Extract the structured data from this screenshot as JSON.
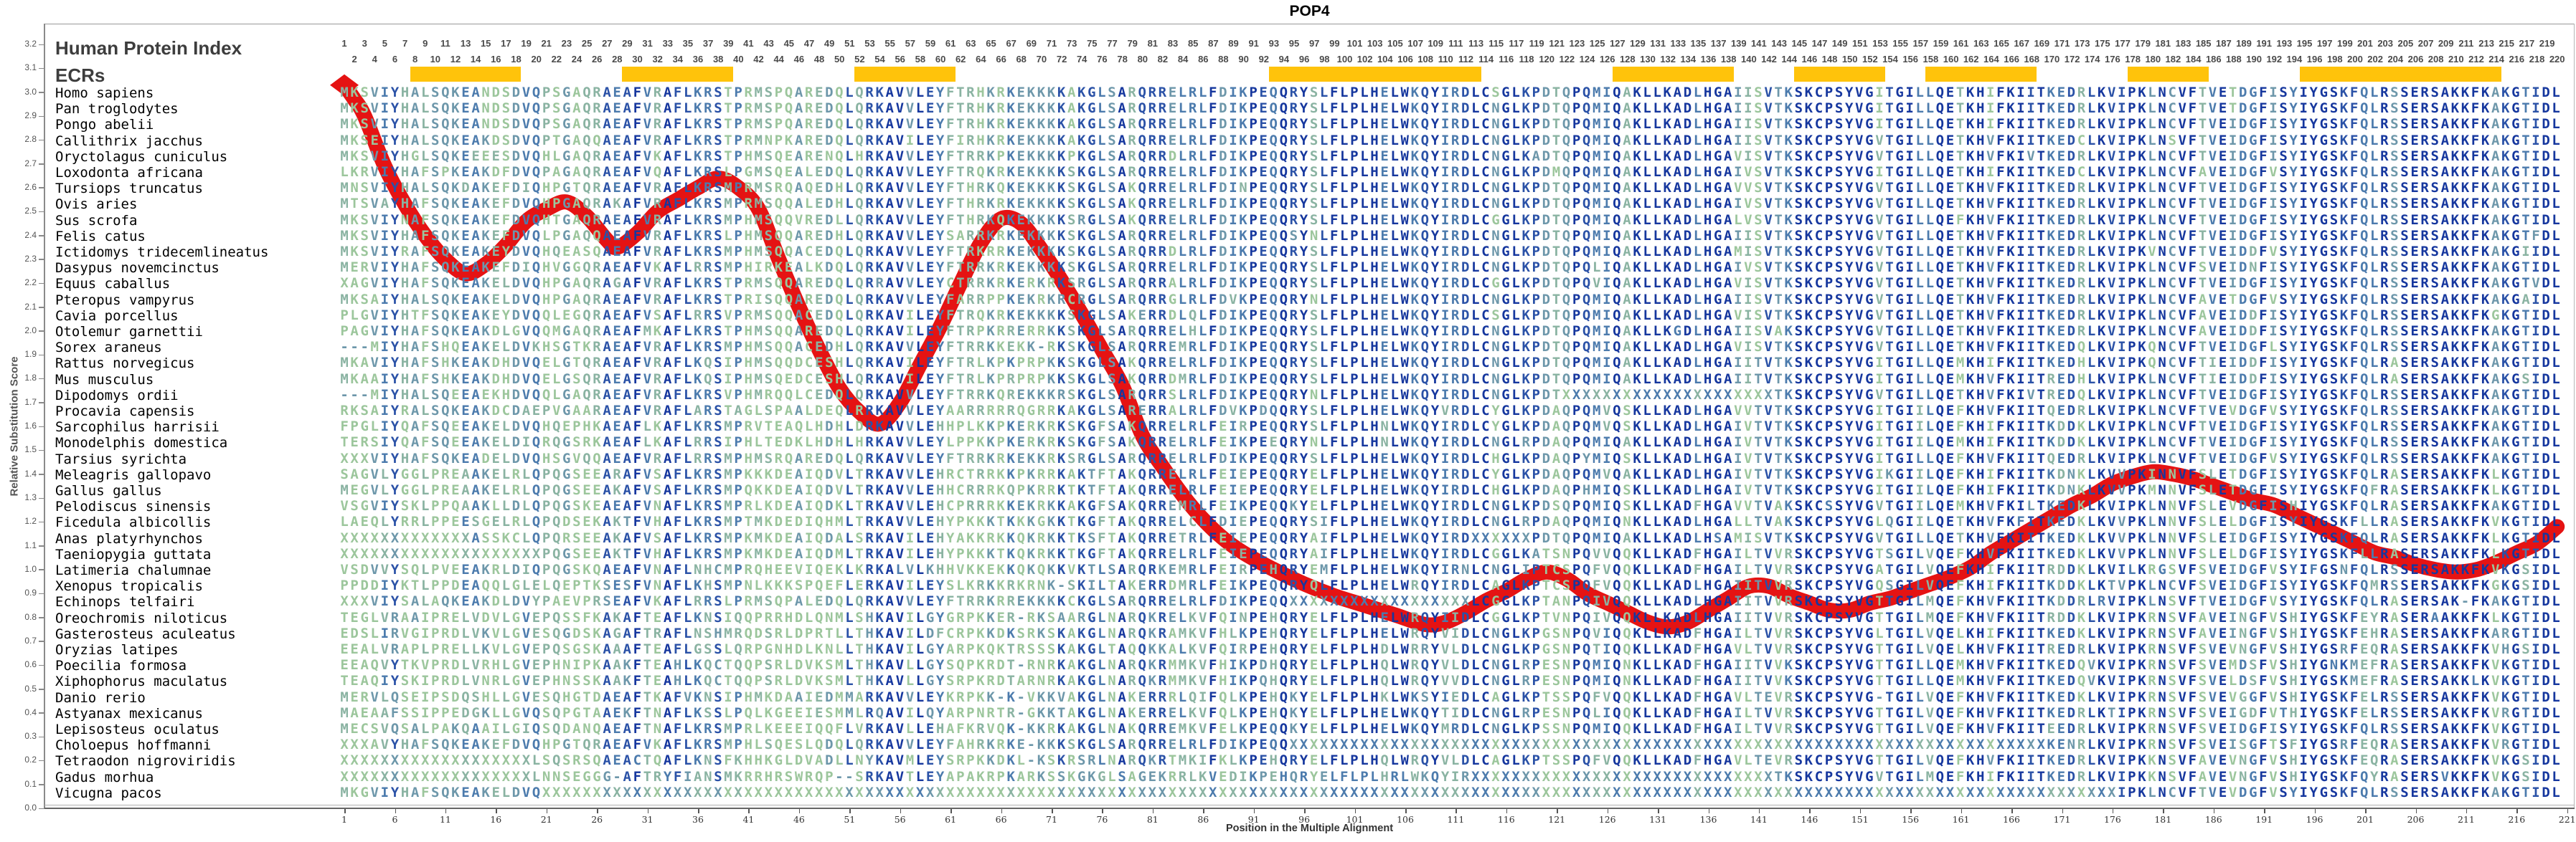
{
  "title": "POP4",
  "y_axis": {
    "label": "Relative Substitution Score",
    "min": 0.0,
    "max": 3.2,
    "step": 0.1
  },
  "x_axis": {
    "label": "Position in the Multiple Alignment",
    "tick_start": 1,
    "tick_step": 5,
    "tick_end": 221
  },
  "left_panel": {
    "header": "Human Protein Index",
    "ecr_label": "ECRs"
  },
  "ruler": {
    "start": 1,
    "end": 220
  },
  "ecr_regions": [
    [
      8,
      18
    ],
    [
      29,
      39
    ],
    [
      52,
      61
    ],
    [
      93,
      113
    ],
    [
      127,
      138
    ],
    [
      145,
      153
    ],
    [
      158,
      168
    ],
    [
      178,
      185
    ],
    [
      195,
      214
    ]
  ],
  "colors": {
    "ecr_bar": "#FFC30B",
    "curve": "#E51313",
    "conservation_palette": [
      "#16379e",
      "#2b52a7",
      "#4c7bad",
      "#6d97aa",
      "#8ab3a2",
      "#9cc69c"
    ],
    "axis": "#888888",
    "ruler_text": "#4a4a4a"
  },
  "species": [
    "Homo sapiens",
    "Pan troglodytes",
    "Pongo abelii",
    "Callithrix jacchus",
    "Oryctolagus cuniculus",
    "Loxodonta africana",
    "Tursiops truncatus",
    "Ovis aries",
    "Sus scrofa",
    "Felis catus",
    "Ictidomys tridecemlineatus",
    "Dasypus novemcinctus",
    "Equus caballus",
    "Pteropus vampyrus",
    "Cavia porcellus",
    "Otolemur garnettii",
    "Sorex araneus",
    "Rattus norvegicus",
    "Mus musculus",
    "Dipodomys ordii",
    "Procavia capensis",
    "Sarcophilus harrisii",
    "Monodelphis domestica",
    "Tarsius syrichta",
    "Meleagris gallopavo",
    "Gallus gallus",
    "Pelodiscus sinensis",
    "Ficedula albicollis",
    "Anas platyrhynchos",
    "Taeniopygia guttata",
    "Latimeria chalumnae",
    "Xenopus tropicalis",
    "Echinops telfairi",
    "Oreochromis niloticus",
    "Gasterosteus aculeatus",
    "Oryzias latipes",
    "Poecilia formosa",
    "Xiphophorus maculatus",
    "Danio rerio",
    "Astyanax mexicanus",
    "Lepisosteus oculatus",
    "Choloepus hoffmanni",
    "Tetraodon nigroviridis",
    "Gadus morhua",
    "Vicugna pacos"
  ],
  "sequences": [
    "MKSVIYHALSQKEANDSDVQPSGAQRAEAFVRAFLKRSTPRMSPQAREDQLQRKAVVLEYFTRHKRKEKKKKAKGLSARQRRELRLFDIKPEQQRYSLFLPLHELWKQYIRDLCSGLKPDTQPQMIQAKLLKADLHGAIISVTKSKCPSYVGITGILLQETKHIFKIITKEDRLKVIPKLNCVFTVETDGFISYIYGSKFQLRSSERSAKKFKAKGTIDL",
    "MKSVIYHALSQKEANDSDVQPSGAQRAEAFVRAFLKRSTPRMSPQAREDQLQRKAVVLEYFTRHKRKEKKKKAKGLSARQRRELRLFDIKPEQQRYSLFLPLHELWKQYIRDLCNGLKPDTQPQMIQAKLLKADLHGAIISVTKSKCPSYVGITGILLQETKHIFKIITKEDRLKVIPKLNCVFTVETDGFISYIYGSKFQLRSSERSAKKFKAKGTIDL",
    "MKSVIYHALSQKEANDSDVQPSGAQRAEAFVRAFLKRSTPRMSPQAREDQLQRKAVVLEYFTRHKRKEKKKKAKGLSARQRRELRLFDIKPEQQRYSLFLPLHELWKQYIRDLCNGLKPDTQPQMIQAKLLKADLHGAIISVTKSKCPSYVGITGILLQETKHIFKIITKEDRLKVIPKLNCVFTVEIDGFISYIYGSKFQLRSSERSAKKFKAKGTIDL",
    "MKSEIYHALSQKEAKDSDVQPTGAQQAEAFVRAFLKRSTPRMNPKAREDQLQRKAVILEYFIRHKRKEKKKKAKGLSARQRRELRLFDIKPEQQRYSLFLPLHELWKQYIRDLCNGLKPDTQPQMIQAKLLKADLHGAIISVTKSKCPSYVGVTGILLQETKHVFKIITKEDCLKVIPKLNSVFTVEIDGFISYIYGSKFQLRSSERSAKKFKAKGTIDL",
    "MKSVIYHGLSQKEEEESDVQHLGAQRAEAFVKAFLKRSTPHMSQEARENQLHRKAVVLEYFTRRKPKEKKKKPKGLSARQRRDLRLFDIKPEQQRYSLFLPLHELWKQYIRDLCNGLKADTQPQMIQAKLLKADLHGAVISVTKSKCPSYVGVTGILLQETKHVFKIVTKEDRLKVIPKLNCVFTVEIDGFISYIYGSKFQLRSSERSAKKFKAKGTIDL",
    "LKRVIYHAFSPKEAKDFDVQPAGAQRAEAFVQAFLKRSLPGMSQEALEDQLQRKAVVLEYFTRQKRKEKKKKSKGLSARQRRELRLFDIKPEQQRYSLFLPLHELWKQYIRDLCNGLKPDMQPQMIQAKLLKADLHGAIVSVTKSKCPSYVGITGILLQETKHIFKIITKEDCLKVIPKLNCVFAVEIDGFVSYIYGSKFQLRSSERSAKKFKAKGTIDL",
    "MNSVIYHALSQKDAKEFDIQHPGTQRAEAFVRAFLKRSMPRMSRQAQEDHLQRKAVVLEYFTHRKQKEKKKKSKGLSAKQRRELRLFDINPEQQRYSLFLPLHELWKQYIRDLCNGLKPDTQPQMIQAKLLKADLHGAVVSVTKSKCPSYVGVTGILLQETKHVFKIITKEDRLKVIPKLNCVFTVEIDGFISYIYGSKFQLRSSERSAKKFKAKGTIDL",
    "MTSVAYHAFSQKEAKEFDVQHPGAQRAKAFVRAFLKRSMPRMSQQALEDHLQRKAVVLEYFTHRKRKEKKKKSKGLSAKQRRELRLFDIKPEQQRYSLFLPLHELWKQYIRDLCNGLKPDTQPQMIQAKLLKADLHGAIVSVTKSKCPSYVGVTGILLQETKHVFKIITKEDRLKVIPKLNCVFTVEIDGFISYIYGSKFQLRSSERSAKKFKAKGTIDL",
    "MKSVIYNAFSQKEAKEFDVQHTGAQRAEAFVRAFLKRSMPHMSQQVREDLLQRKAVVLEYFTHRKQKEKKKKSRGLSAKQRRELRLFDIKPEQQRYSLFLPLHELWKQYIRDLCGGLKPDTQPQMIQAKLLKADLHGALVSVTKSKCPSYVGVTGILLQEFKHVFKIITKEDRLKVIPKLNCVFTVEIDGFISYIYGSKFQLRSSERSAKKFKAKGTIDL",
    "MKSVIYHAFSQKEAKEFDVQLPGAQQAEAFVRAFLKRSLPHMSQQAREDHLQRKAVVLEYSARRKRKEKKKKSKGLSARQRRELRLFDIKPEQQSYNLFLPLHELWKQYIRDLCNGLKPDTQPQMIQAKLLKADLHGAIISVTKSKCPSYVGVTGILLQETKHVFKIITKEDRLKVIPKLNCVFTVEIDGFISYIYGSKFQLRSSERSAKKFKAKGTFDL",
    "MKSVIYRAFSQKEAKEYDVQHQEASQAEAFVRAFLKRSMPHMSQQACEDQLQRKAVVLEYFTRKRRKEKKKKSKGLSARQRRDLRLFDIKPEQQRYSLFLPLHELWKQYIRDLCNGLKPDTQPQMIQAKLLKADLHGAMISVTKSKCPSYVGVTGILLQETKHVFKIITKEDRLKVIPKVNCVFTVEIDDFVSYIYGSKFQLRSSERSAKKFKAKGIIDL",
    "MERVIYHAFSQKEAKEFDIQHVGGQRAEAFVKAFLRRSMPHIRKEALKDQLQRKAVVLEYFTRRKRKEKKKKSKGLSARQRRELRLFDIKPEQQRYSLFLPLHELWKQYIRDLCNGLKPDTQPQLIQAKLLKADLHGAIVSVTKSKCPSYVGVTGILLQETKHVFKIITKEDRLKVIPKLNCVFSVEIDNFISYIYGSKFQLRSSERSAKKFKAKGTIDL",
    "XAGVIYHAFSQKEAKELDVQHPGAQRAGAFVRAFLKRSTPRMSQQAREDQLQRRAVVLEYCTRRKRKERKRKSRGLSARQRRALRLFDIKPEQQRYSLFLPLHELWKQYIRDLCGGLKPDTQPQVIQAKLLKADLHGAVISVTKSKCPSYVGVTGILLQETKHVFKIITKEDRLKVIPKLNCVFTVEIDGFISYIYGSKFQLRSSERSAKKFKAKGTVDL",
    "MKSAIYHALSQKEAKELDVQHPGAQRAEAFVRAFLKRSTPRISQQAREDQLQRKAVVLEYFARRPPKEKRKRCRGLSARQRRGLRLFDVKPEQQRYNLFLPLHELWKQYIRDLCNGLKPDTQPQMIQAKLLKADLHGAIISVTKSKCPSYVGVTGILLQETKHVFKIITKEDRLKVIPKLNCVFAVETDGFVSYIYGSKFQLRSSERSAKKFKAKGAIDL",
    "PLGVIYHTFSQKEAKEYDVQQLEGQRAEAFVSAFLRRSVPRMSQQACEDQLQRKAVILEYFTRQKRKEKKKKSKGLSAKERRDLQLFDIKPEQQRYSLFLPLHELWKQYIRDLCSGLKPDTQPQMIQAKLLKADLHGAVISVTKSKCPSYVGVTGILLQETKHVFKIITKEDRLKVIPKLNCVFAVEIDDFISYIYGSKFQLRSSERSAKKFKGKGTIDL",
    "PAGVIYHAFSQKEAKDLGVQQMGAQRAEAFMKAFLKRSTPHMSQQAREDQLQRKAVILEYFTRPKRRERRKKSKGLSARQRRELHLFDIKPEQQRYSLFLPLHELWKQYIRDLCNGLKPDTQPQMIQAKLLKGDLHGAIISVAKSKCPSYVGVTGILLQETKHVFKIITKEDRLKVIPKLNCVFAVEIDDFISYIYGSKFQLRSSERSAKKFKAKGTIDL",
    "---MIYHAFSHQEAKELDVKHSGTKRAEAFVRAFLKRSMPHMSQQACEDHLQRKAVVLEYFTRRKKEKK-RKSKGLSARQRREMRLFDIKPEQQRYSLFLPLHELWKQYIRDLCNGLKPDTQPQMIQAKLLKADLHGAVISVTKSKCPSYVGVTGILLQETKHVFKIITKEDQLKVIPKQNCVFTVEIDGFLSYIYGSKFQLRSSERSAKKFKAKGTIDL",
    "MKAVIYHAFSHKEAKDHDVQELGTQRAEAFVRAFLKQSIPHMSQQDCESHLQRKAVILEYFTRLKPKPRPKKSKGLSAKQRRELRLFDIKPEQQRYSLFLPLHELWKQYIRDLCNGLKPDTQPQMIQAKLLKADLHGAIITVTKSKCPSYVGITGILLQEMKHIFKIITKEDHLKVIPKQNCVFTIEIDDFISYIYGSKFQLRASERSAKKFKAKGTIDL",
    "MKAAIYHAFSHKEAKDHDVQELGSQRAEAFVRAFLKQSIPHMSQEDCESHLQRKAVILEYFTRLKPRPRPKKSKGLSAKQRRDMRLFDIKPEQQRYSLFLPLHELWKQYIRDLCNGLKPDTQPQMIQAKLLKADLHGAIITVTKSKCPSYVGITGILLQEMKHVFKIITREDHLKVIPKLNCVFTIEIDDFISYIYGSKFQLRASERSAKKFKAKGSIDL",
    "---MIYHALSQEEAEKHDVQQLGAQRAEAFVRAFLKRSVPHMRQQLCEDQLQRKAVVLEYFTRRKQREKKKRSKGLSARQRRSLRLFDIKPEQQRYNLFLPLHELWKQYIRDLCNGLKPDTXXXXXXXXXXXXXXXXXXXXXTKSKCPSYVGVTGILLQETKHVFKIVTREDQLKVIPKLNCVFTVEIDGFISYIYGSKFQLRSSERSAKKFKAKGTIDL",
    "RKSAIYRALSQKEAKDCDAEPVGAARAEAFVRAFLARSTAGLSPAALDEQLRRKAVVLEYAARRRRRQGRRKAKGLSARERRALRLFDVKPDQQRYSLFLPLHELWKQYVRDLCYGLKPDAQPQMVQSKLLKADLHGAVVTVTKSKCPSYVGITGIILQEFKHVFKIITQEDRLKVIPKLNCVFTVEVDGFVSYIYGSKFQLRSSERSAKKFKAKGTIDL",
    "FPGLIYQAFSQEEAKELDVQHQEPHKAEAFLKAFLKRSMPRVTEAQLHDHLDRKAVVLEHHPLKKPKERKRKSKGFSAKQRRELRLFEIRPEQQRYSLFLPLHNLWKQYIRDLCYGLKPDAQPQMVQSKLLKADLHGAIVTVTKSKCPSYVGITGIILQEFKHIFKIITKDDKLKVIPKLNCVFTVEIDGFISYIYGSKFQLRSSERSAKKFKAKGTIDL",
    "TERSIYQAFSQEEAKELDIQRQGSRKAEAFLKAFLRRSIPHLTEDKLHDHLHRKAVVLEYLPPKKPKERKRKSKGFSAKQRRELRLFEIKPEEQRYNLFLPLHNLWKQYIRDLCNGLRPDAQPQMIQAKLLKADLHGAIVTVTKSKCPSYVGITGIILQEMKHIFKIITKDDKLKVIPKLNCVFTVEIDGFISYIYGSKFQLRSSERSAKKFKAKGTIDL",
    "XXXVIYHAFSQKEADELDVQHSGVQQAEAFVRAFLRRSMPHMSRQAREDQLQRKAVVLEYFTRRKRKEKKRKSRGLSARQRRELRLFDIKPEQQRYSLFLPLHELWKQYIRDLCHGLKPDAQPYMIQSKLLKADLHGAIVTVTKSKCPSYVGITGILLQEFKHVFKIITQEDRLKVIPKLNCVFTVEIDGFVSYIYGSKFQLRSSERSAKKFKAKGTIDL",
    "SAGVLYGGLPREAAKELRLQPQGSEEARAFVSAFLKRSMPKKKDEAIQDVLTRKAVVLEHRCTRRKKPKRRKAKTFTAKQRRELRLFEIEPEQQRYELFLPLHELWKQYIRDLCYGLKPDAQPQMVQAKLLKADLHGAIVTVTKSKCPSYVGIKGIILQEFKHIFKIITKDNKLKVVPKINNVFSLETDGFISYIYGSKFQLRASERSAKKFKLKGTIDL",
    "MEGVLYGGLPREAAKELRLQPQGSEEAKAFVSAFLKRSMPQKKDEAIQDVLTRKAVVLEHHCRRRKQPKRRKTKTFTAKQRRELRLFEIEPEQQRYELFLPLHELWKQYIRDLCHGLKPDAQPHMIQSKLLKADLHGAIVTVTKSKCPSYVGITGIILQEFKHIFKIITKDNKLKVVPKMNNVFSLETDGFISYIYGSKFQFRASERSAKKFKLKGTIDL",
    "VSGVIYSKLPPQAAKLLDLQPQGSKEAEAFVNAFLKRSMPRLKDEAIQDKLTRKAVVLEHCPRRRKKEKRKKAKGFSAKQRREMRLFEIKPEQQKYELFLPLHELWKQYIRDLCNGLKPDSQPQMIQSKLLKADFHGAVVTVAKSKCSSYVGVTGIILQEMKHVFKILTKEDKLKVIPKLNNVFSLEVDGFISHIYGSKFQLRASERSAKKFKAKGTIDL",
    "LAEQLYRRLPPEESGELRLQPQDSEKAKTFVHAFLKRSMPTMKDEDIQHMLTRKAVVLEHYPKKKTKKKGKKTKGFTAKQRRELCLFDIEPEQQRYSIFLPLHELWKQYIRDLCNGLRPDAQPQMIQNKLLKADLHGALLTVAKSKCPSYVGLQGIILQETKHVFKFITKEDKLKVVPKLNNVFSLELDGFISYIYGSKFLLRASERSAKKFKVKGTIDL",
    "XXXXXXXXXXXXXASSKCLQPQRSEEAKAFVSAFLKRSMPKMKDEAIQDALSRKAVILEHYAKKRKKQKRKKTKSFTAKQRRETRLFEIEPEQQRYAIFLPLHELWKQYIRDXXXXXXPDTQPQMIQAKLLKADLHSAMISVTKSKCPSYVGVTGILLQETKHVFKIITKEDKLKVVPKLNNVFSLEIDGFISYIYGSKFQLRASERSAKKFKLKGTIDL",
    "XXXXXXXXXXXXXXXXXXXXPQGSEEAKTFVHAFLKRSMPKMKDEAIQDMLTRKAVILEHYPKKKTKQKRKKTKGFTAKQRRELRLFEIEPEQQRYAIFLPLHELWKQYIRDLCGGLKATSNPQVVQQKLLKADFHGAILTVVRSKCPSYVGTSGILVQEFKHVFKIITKEDKLKVVPKLNNVFSLELDGFISYIYGSKFLLRASERSAKKFKLKGTIDL",
    "VSDVVYSQLPVEEAKRLDIQPQGSKQAEAFVNAFLNHCMPRQHEEVIQEKLKRKALVLKHHVKKEKKQKQKKVKTLSARQRKEMRLFEIRPEHQRYEMFLPLHELWKQYIRNLCNGLIPTCSPQFVQQKLLKADFHGAILTVVRSKCPSYVGATGILVQEFKHIFKIITRDDKLKVILKRGSVFSVEIDGFVSYIFGSNFQLRSSERSAKKFKVKGSIDL",
    "PPDDIYKTLPPDEAQQLGLELQEPTKSESFVNAFLKHSMPNLKKKSPQEFLERKAVILEYSLKRKKRKRNK-SKILTAKERRDMRLFEIKPEQQRYQLFLPLHELWRQYIRDLCAGLKPTCSPQFVQQKLLKADLHGAIITVVRSKCPSYVGQSGILVQEFKHIFKIITKDDKLKTVPKLNCVFSVEIDGFISYIYGSKFQMRSSERSAKKFKGKGSIDL",
    "XXXVIYSALAQKEAKDLDVYPAEVPRSEAFVKAFLRRSLPRMSQPALEDQLQRKAVVLEYFTRRKRREKKKKCKGLSARQRRELRLFDIKPEQQXXXXXXXXXXXXXXXXXXLCGGLKPTANPQIVQQKLLKADLHGAIITVVRSKCPSYVGTTGILMQEFKHVFKIITKDDRLRVIPKLNSVFTVEIDGFVSYIYGSKFQLRASERSAK-FKAKGTIDL",
    "TEGLVRAAIPRELVDVLGVEPQSSFKAKAFTEAFLKNSIQQPRRHDLQNMLSHKAVILGYGRPKKER-RKSAARGLNARQKRELKVFQINPEHQRYELFLPLHELWRQYIIDLCGGLKPTVNPQIVQQKLLKADLHGAIITVVRSKCPSYVGTTGILMQEFKHVFKIITRDDKLKVIPKRNSVFAVEINGFVSHIYGSKFEYRASERAAKKFKLKGTIDL",
    "EDSLIRVGIPRDLVKVLGVESQGDSKAGAFTRAFLNSHMRQDSRLDPRTLLTHKAVILDFCRPKKDKSRKSKAKGLNARQKRAMKVFHLKPEHQRYELFLPLHELWRQYVIDLCNGLKPGSNPQVIQQKLLKADFHGAILTVVRSKCPSYVGLTGILVQELKHIFKIITKEDKLKVIPKRNSVFAVEINGFVSHIYGSKFEHRASERSAKKFKARGTIDL",
    "EEALVRAPLPRELLKVLGVEPQSGSKAAAFTEAFLGSSLQRPGNHDLKNLLTHKAVILGYARPKQKTRSSSKAKGLTAQQKKALKVFQIRPEHQRYELFLPLHDLWRRYVLDLCNGLKPGSNPQTIQQKLLKADFHGAVLTVVRSKCPSYVGTTGILVQELKHVFKIITREDRLKVIPKRNSVFSVEVNGFVSHIYGSRFEQRASERSAKKFKVHGSIDL",
    "EEAQVYTKVPRDLVRHLGVEPHNIPKAAKFTEAHLKQCTQQPSRLDVKSMLTHKAVLLGYSQPKRDT-RNRKAKGLNARQKRMMKVFHIKPDHQRYELFLPLHQLWRQYVLDLCNGLRPESNPQMIQNKLLKADFHGAIITVVKSKCPSYVGTTGILLQEMKHVFKIITKEDQVKVIPKRNSVFSVEMDSFVSHIYGNKMEFRASERSAKKFKVKGTIDL",
    "TEAQIYSKIPRDLVNRLGVEPHNSSKAAKFTEAHLKQCTQQPSRLDVKSMLTHKAVLLGYSRPKRDTARNRKAKGLNARQKRMMKVFHIKPQHQRYELFLPLHQLWRQYVVDLCNGLRPESNPQMIQNKLLKADFHGAIITVVKSKCPSYVGTTGILLQEMKHVFKIITKEDQVKVIPKRNSVFSVELDSFVSHIYGSKMEFRASERSAKKLKVKGTIDL",
    "MERVLQSEIPSDQSHLLGVESQHGTDAEAFTKAFVKNSIPHMKDAAIEDMMARKAVVLEYKRPKK-K-VKKVAKGLNAKERRRLQIFQLKPEHQKYELFLPLHKLWKSYIEDLCAGLKPTSSPQFVQQKLLKADFHGAVLTEVRSKCPSYVG-TGILVQEFKHVFKIITKEDKLKVIPKRNSVFSVEVGGFVSHIYGSKFELRSSERSAKKFKVKGTIDL",
    "MAEAAFSSIPPEDGKLLGVQSQPGTAAEKFTNAFLKSSLPQLKGEEIESMMLRQAVILQYARPNRTR-GKKTAKGLNAKERRELKVFQLKPEHQKYELFLPLHELWKQYTIDLCNGLRPESNPQLIQQKLLKADFHGAILTVVRSKCPSYVGTTGILVQEFKHVFKIITKEDRLKTIPKRNSVFSVEIGDFVTHIYGSKFELRSSERSAKKFKVRGTIDL",
    "MECSVQSALPAKQAAILGIQSQDANQAEAFTNAFLKRSMPRLKEEEIQQFLVRKAVLLEHAFKRVQK-KKRKAKGLNAKQRREMKVFELKPEQQKYELFLPLHELWKQYMRDLCNGLKPSSNPQMIQQKLLKADFHGAILTVVRSKCPSYVGTTGILVQEFKHVFKIITEEDRLKVIPKRNSVFSVEIDGFISYIYGSKFQLRSSERSAKKFKVKGTIDL",
    "XXXAVYHAFSQKEAKEFDVQHPGTQRAEAFVKAFLKRSMPHLSQESLQDQLQRKAVVLEYFAHRKRKE-KKKSKGLSARQRRELRLFDIKPEQQXXXXXXXXXXXXXXXXXXXXXXXXXXXXXXXXXXXXXXXXXXXXXXXXXXXXXXXXXXXXXXXXXXXXXXXXXXXKENRLKVIPKRNSVFSVEISGFTSFIYGSRFEQRASERSAKKFKVRGTIDL",
    "XXXXXXXXXXXXXXXXXXXLSQSRSQAEACTQAFLKNSFKHHKGLDVADLLNYKAVMLEYSRPKKDKL-KSKRSRLNARQKRTMKIFKLKPEHQRYELFLPLHQLWRQYVLDLCAGLKPTSSPQFVQQKLLKADFHGAVLTEVRSKCPSYVGTTGILVQEFKHVFKIITKEDRLKVIPKKNSVFAVEVNGFVSHIYGSKFEQRASERSAKKFKVKGSIDL",
    "XXXXXXXXXXXXXXXXXXXLNNSEGGG-AFTRYFIANSMKRRHRSWRQP--SRKAVTLEYAPAKRPKARKSSKGKGLSAGEKRRLKVEDIKPEHQRYELFLPLHRLWKQYIRXXXXXXXXXXXXXXXXXXXXXXXXXXXXXXTKSKCPSYVGVTGILMQEFKHIFKIITKEDRLKVIPKKNSVFAVEVNGFVSHIYGSKFQYRASERSVKKFKVKGSIDL",
    "MKGVIYHAFSQKEAKELDVQXXXXXXXXXXXXXXXXXXXXXXXXXXXXXXXXXXXXXXXXXXXXXXXXXXXXXXXXXXXXXXXXXXXXXXXXXXXXXXXXXXXXXXXXXXXXXXXXXXXXXXXXXXXXXXXXXXXXXXXXXXXXXXXXXXXXXXXXXXXXXXXXXXXXXXXXXXXXIPKLNCVFTVEVDGFVSYIYGSKFQLRSSERSAKKFKAKGTIDL"
  ],
  "chart_data": {
    "type": "line",
    "title": "POP4",
    "xlabel": "Position in the Multiple Alignment",
    "ylabel": "Relative Substitution Score",
    "xlim": [
      1,
      221
    ],
    "ylim": [
      0.0,
      3.2
    ],
    "grid": false,
    "legend_position": "none",
    "series": [
      {
        "name": "Relative Substitution Score",
        "points": [
          [
            1,
            3.03
          ],
          [
            2,
            2.97
          ],
          [
            3,
            2.9
          ],
          [
            5,
            2.69
          ],
          [
            7,
            2.53
          ],
          [
            9,
            2.4
          ],
          [
            11,
            2.3
          ],
          [
            13,
            2.24
          ],
          [
            15,
            2.28
          ],
          [
            17,
            2.36
          ],
          [
            19,
            2.46
          ],
          [
            21,
            2.51
          ],
          [
            23,
            2.54
          ],
          [
            25,
            2.48
          ],
          [
            27,
            2.38
          ],
          [
            28,
            2.35
          ],
          [
            30,
            2.41
          ],
          [
            32,
            2.5
          ],
          [
            34,
            2.55
          ],
          [
            36,
            2.6
          ],
          [
            38,
            2.64
          ],
          [
            40,
            2.6
          ],
          [
            42,
            2.51
          ],
          [
            44,
            2.3
          ],
          [
            46,
            2.1
          ],
          [
            48,
            1.92
          ],
          [
            50,
            1.76
          ],
          [
            52,
            1.66
          ],
          [
            54,
            1.61
          ],
          [
            56,
            1.7
          ],
          [
            58,
            1.86
          ],
          [
            60,
            2.02
          ],
          [
            62,
            2.2
          ],
          [
            64,
            2.37
          ],
          [
            66,
            2.47
          ],
          [
            68,
            2.45
          ],
          [
            70,
            2.34
          ],
          [
            72,
            2.21
          ],
          [
            74,
            2.07
          ],
          [
            76,
            1.92
          ],
          [
            78,
            1.77
          ],
          [
            80,
            1.56
          ],
          [
            82,
            1.43
          ],
          [
            84,
            1.31
          ],
          [
            86,
            1.21
          ],
          [
            88,
            1.13
          ],
          [
            90,
            1.07
          ],
          [
            93,
            1.0
          ],
          [
            96,
            0.94
          ],
          [
            99,
            0.89
          ],
          [
            102,
            0.85
          ],
          [
            105,
            0.81
          ],
          [
            108,
            0.77
          ],
          [
            110,
            0.78
          ],
          [
            112,
            0.82
          ],
          [
            114,
            0.87
          ],
          [
            116,
            0.91
          ],
          [
            118,
            0.96
          ],
          [
            120,
            0.99
          ],
          [
            122,
            0.96
          ],
          [
            124,
            0.9
          ],
          [
            126,
            0.86
          ],
          [
            128,
            0.82
          ],
          [
            130,
            0.78
          ],
          [
            132,
            0.76
          ],
          [
            134,
            0.78
          ],
          [
            136,
            0.83
          ],
          [
            138,
            0.88
          ],
          [
            140,
            0.93
          ],
          [
            142,
            0.93
          ],
          [
            144,
            0.89
          ],
          [
            146,
            0.86
          ],
          [
            148,
            0.83
          ],
          [
            150,
            0.83
          ],
          [
            152,
            0.86
          ],
          [
            154,
            0.88
          ],
          [
            156,
            0.91
          ],
          [
            158,
            0.94
          ],
          [
            160,
            0.97
          ],
          [
            162,
            1.01
          ],
          [
            164,
            1.07
          ],
          [
            166,
            1.12
          ],
          [
            168,
            1.17
          ],
          [
            170,
            1.22
          ],
          [
            172,
            1.27
          ],
          [
            174,
            1.31
          ],
          [
            176,
            1.36
          ],
          [
            178,
            1.39
          ],
          [
            180,
            1.41
          ],
          [
            182,
            1.4
          ],
          [
            184,
            1.38
          ],
          [
            186,
            1.35
          ],
          [
            188,
            1.32
          ],
          [
            190,
            1.29
          ],
          [
            192,
            1.27
          ],
          [
            194,
            1.23
          ],
          [
            196,
            1.19
          ],
          [
            198,
            1.15
          ],
          [
            200,
            1.11
          ],
          [
            202,
            1.07
          ],
          [
            204,
            1.05
          ],
          [
            206,
            1.02
          ],
          [
            208,
            1.0
          ],
          [
            210,
            0.99
          ],
          [
            212,
            1.0
          ],
          [
            214,
            1.03
          ],
          [
            216,
            1.07
          ],
          [
            218,
            1.11
          ],
          [
            220,
            1.18
          ]
        ]
      }
    ],
    "annotations": {
      "start_marker": "diamond at position 1",
      "ecr_regions_highlighted_yellow": true
    }
  }
}
